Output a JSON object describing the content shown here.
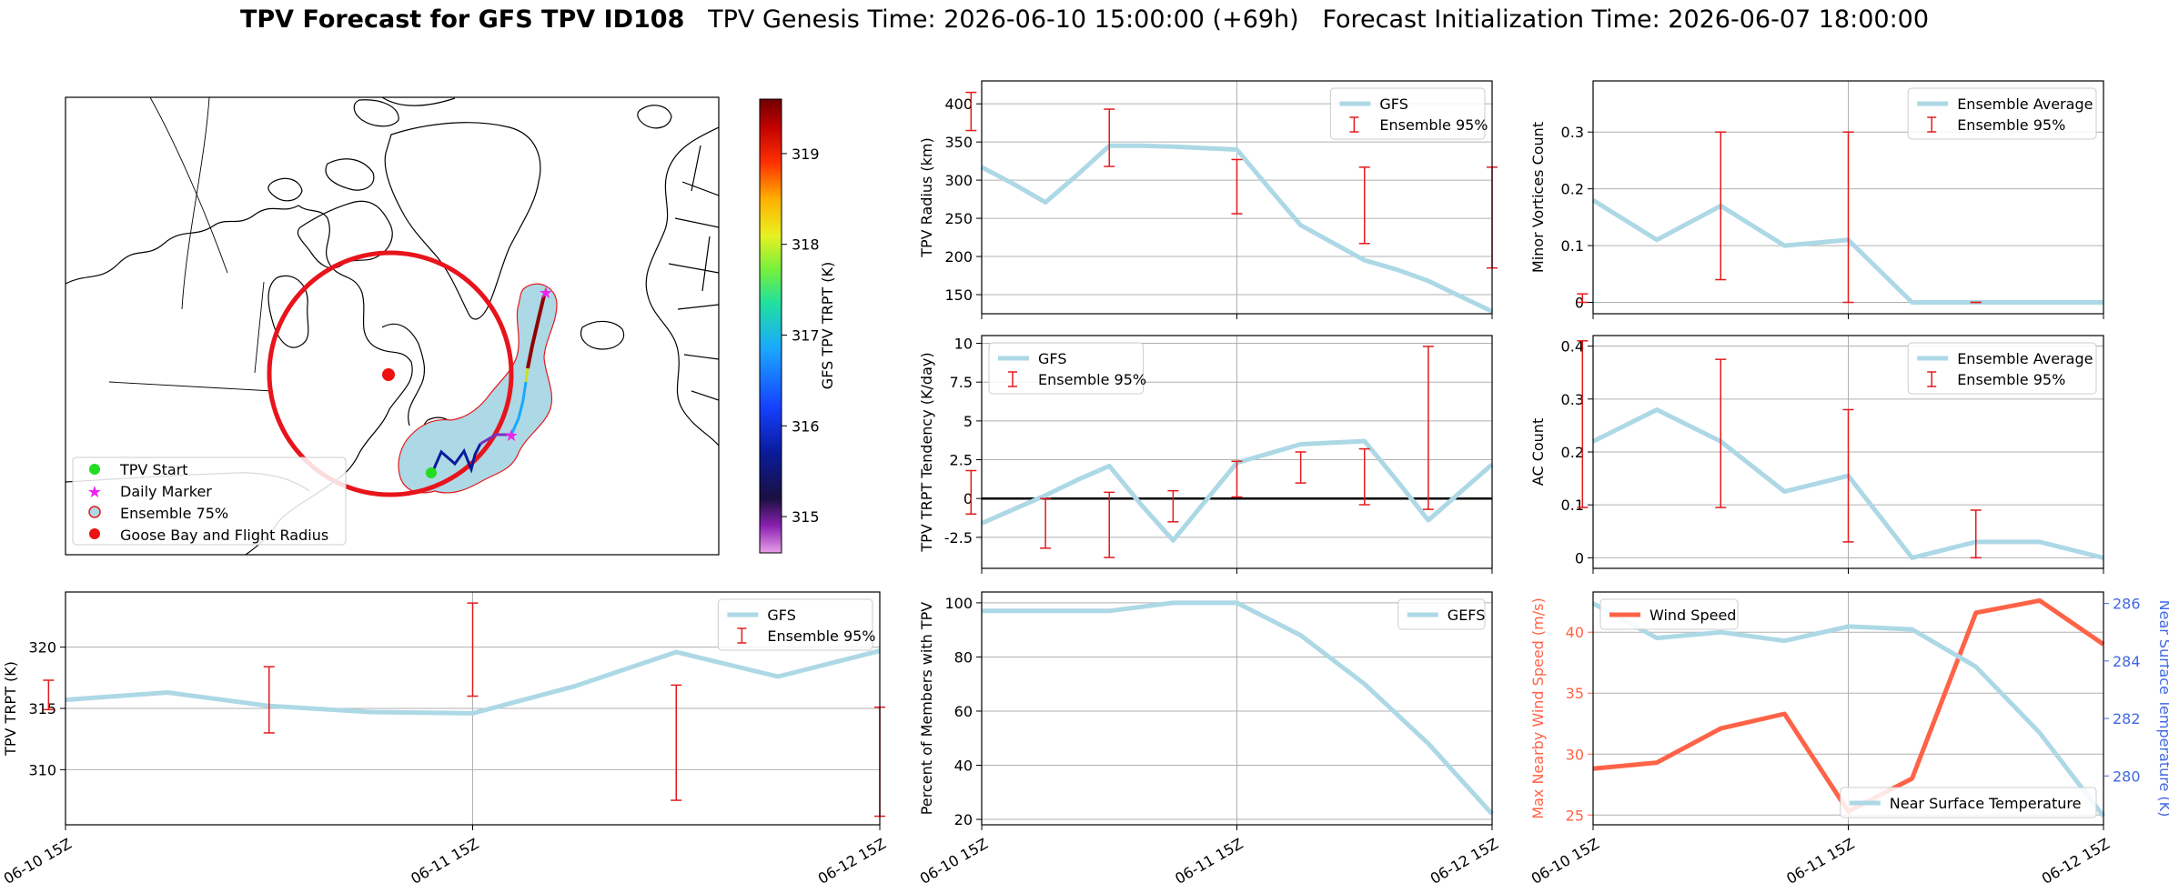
{
  "header": {
    "title_bold": "TPV Forecast for GFS TPV ID108",
    "title_rest": "TPV Genesis Time: 2026-06-10 15:00:00 (+69h)   Forecast Initialization Time: 2026-06-07 18:00:00"
  },
  "colors": {
    "gfs_line": "#add8e6",
    "ensemble_bar": "#e31a1c",
    "wind": "#ff6347",
    "temp_axis": "#4169e1",
    "grid": "#b0b0b0",
    "zero_line": "#000000",
    "circle": "#e8141c",
    "ensemble_shade": "#add8e6",
    "tpv_start": "#22dd22",
    "daily_marker": "#ee22ee",
    "goose_bay": "#ee1111"
  },
  "map": {
    "legend": [
      "TPV Start",
      "Daily Marker",
      "Ensemble 75%",
      "Goose Bay and Flight Radius"
    ],
    "colorbar": {
      "label": "GFS TPV TRPT (K)",
      "ticks": [
        315,
        316,
        317,
        318,
        319
      ],
      "min": 314.6,
      "max": 319.6
    }
  },
  "x_ticks": [
    "06-10 15Z",
    "06-11 15Z",
    "06-12 15Z"
  ],
  "chart_data": [
    {
      "id": "radius",
      "type": "line",
      "ylabel": "TPV Radius (km)",
      "ylim": [
        125,
        430
      ],
      "yticks": [
        150,
        200,
        250,
        300,
        350,
        400
      ],
      "legend": [
        "GFS",
        "Ensemble 95%"
      ],
      "legend_pos": "top-right",
      "series": [
        {
          "name": "GFS",
          "x": [
            0,
            3,
            6,
            9,
            12,
            15,
            18,
            21,
            24,
            27,
            30,
            33,
            36,
            39,
            42,
            45,
            48
          ],
          "values": [
            317,
            295,
            271,
            307,
            345,
            345,
            344,
            342,
            340,
            290,
            241,
            218,
            195,
            183,
            168,
            148,
            128
          ]
        }
      ],
      "error_bars": [
        {
          "x": -1,
          "low": 365,
          "high": 415
        },
        {
          "x": 12,
          "low": 318,
          "high": 393
        },
        {
          "x": 24,
          "low": 256,
          "high": 327
        },
        {
          "x": 36,
          "low": 217,
          "high": 317
        },
        {
          "x": 48,
          "low": 185,
          "high": 317
        }
      ]
    },
    {
      "id": "tendency",
      "type": "line",
      "ylabel": "TPV TRPT Tendency (K/day)",
      "ylim": [
        -4.5,
        10.5
      ],
      "yticks": [
        -2.5,
        0.0,
        2.5,
        5.0,
        7.5,
        10.0
      ],
      "legend": [
        "GFS",
        "Ensemble 95%"
      ],
      "legend_pos": "top-left",
      "zero_line": true,
      "series": [
        {
          "name": "GFS",
          "x": [
            0,
            3,
            6,
            9,
            12,
            15,
            18,
            21,
            24,
            27,
            30,
            33,
            36,
            39,
            42,
            45,
            48
          ],
          "values": [
            -1.6,
            -0.7,
            0.2,
            1.2,
            2.1,
            -0.4,
            -2.7,
            -0.2,
            2.3,
            2.9,
            3.5,
            3.6,
            3.7,
            1.2,
            -1.4,
            0.4,
            2.2
          ]
        }
      ],
      "error_bars": [
        {
          "x": -1,
          "low": -1.0,
          "high": 1.8
        },
        {
          "x": 6,
          "low": -3.2,
          "high": 0.0
        },
        {
          "x": 12,
          "low": -3.8,
          "high": 0.4
        },
        {
          "x": 18,
          "low": -1.5,
          "high": 0.5
        },
        {
          "x": 24,
          "low": 0.1,
          "high": 2.4
        },
        {
          "x": 30,
          "low": 1.0,
          "high": 3.0
        },
        {
          "x": 36,
          "low": -0.4,
          "high": 3.2
        },
        {
          "x": 42,
          "low": -0.7,
          "high": 9.8
        }
      ]
    },
    {
      "id": "percent",
      "type": "line",
      "ylabel": "Percent of Members with TPV",
      "ylim": [
        18,
        104
      ],
      "yticks": [
        20,
        40,
        60,
        80,
        100
      ],
      "legend": [
        "GEFS"
      ],
      "legend_pos": "top-right",
      "series": [
        {
          "name": "GEFS",
          "x": [
            0,
            6,
            12,
            18,
            24,
            30,
            36,
            42,
            48
          ],
          "values": [
            97,
            97,
            97,
            100,
            100,
            88,
            70,
            48,
            22
          ]
        }
      ]
    },
    {
      "id": "minor",
      "type": "line",
      "ylabel": "Minor Vortices Count",
      "ylim": [
        -0.02,
        0.39
      ],
      "yticks": [
        0.0,
        0.1,
        0.2,
        0.3
      ],
      "legend": [
        "Ensemble Average",
        "Ensemble 95%"
      ],
      "legend_pos": "top-right",
      "series": [
        {
          "name": "Ensemble Average",
          "x": [
            0,
            6,
            12,
            18,
            24,
            30,
            36,
            42,
            48
          ],
          "values": [
            0.18,
            0.11,
            0.17,
            0.1,
            0.11,
            0.0,
            0.0,
            0.0,
            0.0
          ]
        }
      ],
      "error_bars": [
        {
          "x": -1,
          "low": 0.0,
          "high": 0.015
        },
        {
          "x": 12,
          "low": 0.04,
          "high": 0.3
        },
        {
          "x": 24,
          "low": 0.0,
          "high": 0.3
        },
        {
          "x": 36,
          "low": 0.0,
          "high": 0.0
        }
      ]
    },
    {
      "id": "ac",
      "type": "line",
      "ylabel": "AC Count",
      "ylim": [
        -0.02,
        0.42
      ],
      "yticks": [
        0.0,
        0.1,
        0.2,
        0.3,
        0.4
      ],
      "legend": [
        "Ensemble Average",
        "Ensemble 95%"
      ],
      "legend_pos": "top-right",
      "series": [
        {
          "name": "Ensemble Average",
          "x": [
            0,
            6,
            12,
            18,
            24,
            30,
            36,
            42,
            48
          ],
          "values": [
            0.22,
            0.28,
            0.22,
            0.125,
            0.155,
            0.0,
            0.03,
            0.03,
            0.0
          ]
        }
      ],
      "error_bars": [
        {
          "x": -1,
          "low": 0.095,
          "high": 0.41
        },
        {
          "x": 12,
          "low": 0.095,
          "high": 0.375
        },
        {
          "x": 24,
          "low": 0.03,
          "high": 0.28
        },
        {
          "x": 36,
          "low": 0.0,
          "high": 0.09
        }
      ]
    },
    {
      "id": "trpt",
      "type": "line",
      "ylabel": "TPV TRPT (K)",
      "ylim": [
        305.5,
        324.5
      ],
      "yticks": [
        310,
        315,
        320
      ],
      "legend": [
        "GFS",
        "Ensemble 95%"
      ],
      "legend_pos": "top-right",
      "series": [
        {
          "name": "GFS",
          "x": [
            0,
            6,
            12,
            18,
            24,
            30,
            36,
            42,
            48
          ],
          "values": [
            315.7,
            316.3,
            315.2,
            314.7,
            314.6,
            316.8,
            319.6,
            317.6,
            319.7
          ]
        }
      ],
      "error_bars": [
        {
          "x": -1,
          "low": 314.9,
          "high": 317.3
        },
        {
          "x": 12,
          "low": 313.0,
          "high": 318.4
        },
        {
          "x": 24,
          "low": 316.0,
          "high": 323.6
        },
        {
          "x": 36,
          "low": 307.5,
          "high": 316.9
        },
        {
          "x": 48,
          "low": 306.2,
          "high": 315.1
        }
      ]
    },
    {
      "id": "wind",
      "type": "line",
      "ylabel": "Max Nearby Wind Speed (m/s)",
      "ylim": [
        24.2,
        43.3
      ],
      "yticks": [
        25,
        30,
        35,
        40
      ],
      "ylabel2": "Near Surface Temperature (K)",
      "ylim2": [
        278.3,
        286.4
      ],
      "yticks2": [
        280,
        282,
        284,
        286
      ],
      "legend": [
        "Wind Speed"
      ],
      "legend_pos": "top-left",
      "legend2": [
        "Near Surface Temperature"
      ],
      "legend2_pos": "lower-right",
      "series": [
        {
          "name": "Wind Speed",
          "axis": "left",
          "x": [
            0,
            6,
            12,
            18,
            24,
            30,
            36,
            42,
            48
          ],
          "values": [
            28.8,
            29.3,
            32.1,
            33.3,
            25.3,
            28.0,
            41.6,
            42.6,
            39.0
          ]
        },
        {
          "name": "Near Surface Temperature",
          "axis": "right",
          "x": [
            0,
            6,
            12,
            18,
            24,
            30,
            36,
            42,
            48
          ],
          "values": [
            286.0,
            284.8,
            285.0,
            284.7,
            285.2,
            285.1,
            283.8,
            281.5,
            278.6
          ]
        }
      ]
    }
  ]
}
